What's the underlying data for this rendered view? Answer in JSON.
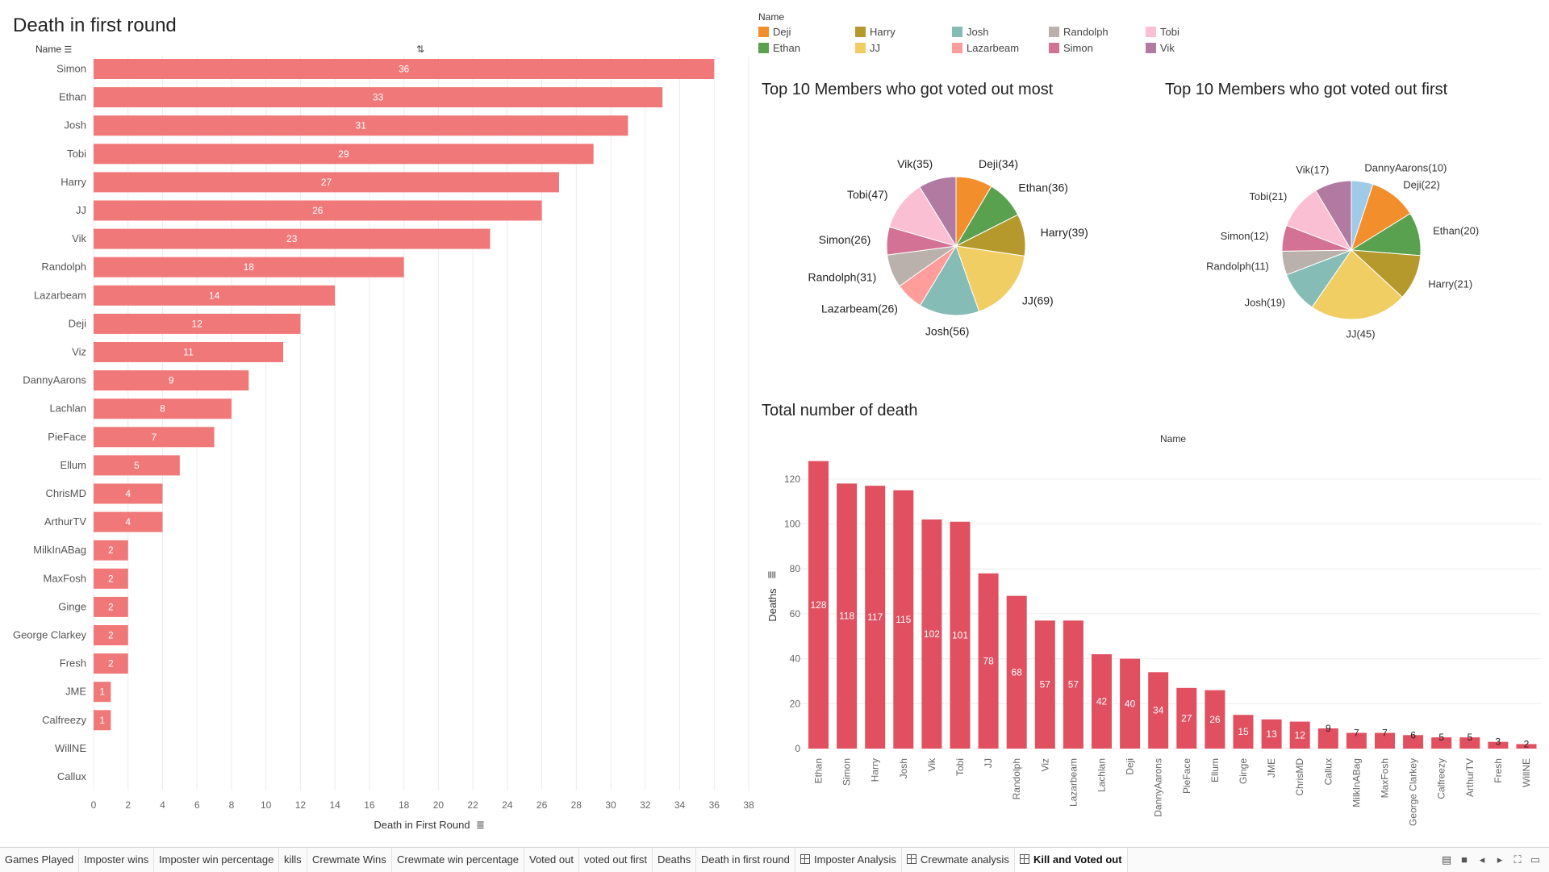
{
  "colors": {
    "bar_left": "#f07878",
    "bar_right": "#e05060",
    "grid": "#ececec"
  },
  "left_chart": {
    "title": "Death in first round",
    "row_header": "Name",
    "x_title": "Death in First Round"
  },
  "legend": {
    "title": "Name",
    "items": [
      {
        "name": "Deji",
        "color": "#f28e2b"
      },
      {
        "name": "Ethan",
        "color": "#59a14f"
      },
      {
        "name": "Harry",
        "color": "#b6992d"
      },
      {
        "name": "JJ",
        "color": "#f1ce63"
      },
      {
        "name": "Josh",
        "color": "#86bcb6"
      },
      {
        "name": "Lazarbeam",
        "color": "#ff9d9a"
      },
      {
        "name": "Randolph",
        "color": "#bab0ac"
      },
      {
        "name": "Simon",
        "color": "#d37295"
      },
      {
        "name": "Tobi",
        "color": "#fabfd2"
      },
      {
        "name": "Vik",
        "color": "#b07aa1"
      }
    ]
  },
  "pie1": {
    "title": "Top 10 Members who got voted out most"
  },
  "pie2": {
    "title": "Top 10 Members who got voted out first"
  },
  "bottom_chart": {
    "title": "Total number of death",
    "col_header": "Name",
    "y_title": "Deaths"
  },
  "tabs": [
    {
      "label": "Games Played",
      "icon": false,
      "active": false
    },
    {
      "label": "Imposter wins",
      "icon": false,
      "active": false
    },
    {
      "label": "Imposter win percentage",
      "icon": false,
      "active": false
    },
    {
      "label": "kills",
      "icon": false,
      "active": false
    },
    {
      "label": "Crewmate Wins",
      "icon": false,
      "active": false
    },
    {
      "label": "Crewmate win percentage",
      "icon": false,
      "active": false
    },
    {
      "label": "Voted out",
      "icon": false,
      "active": false
    },
    {
      "label": "voted out first",
      "icon": false,
      "active": false
    },
    {
      "label": "Deaths",
      "icon": false,
      "active": false
    },
    {
      "label": "Death in first round",
      "icon": false,
      "active": false
    },
    {
      "label": "Imposter Analysis",
      "icon": true,
      "active": false
    },
    {
      "label": "Crewmate analysis",
      "icon": true,
      "active": false
    },
    {
      "label": "Kill and Voted out",
      "icon": true,
      "active": true
    }
  ],
  "chart_data": [
    {
      "type": "bar",
      "orientation": "horizontal",
      "title": "Death in first round",
      "xlabel": "Death in First Round",
      "ylabel": "Name",
      "xlim": [
        0,
        38
      ],
      "xticks": [
        0,
        2,
        4,
        6,
        8,
        10,
        12,
        14,
        16,
        18,
        20,
        22,
        24,
        26,
        28,
        30,
        32,
        34,
        36,
        38
      ],
      "categories": [
        "Simon",
        "Ethan",
        "Josh",
        "Tobi",
        "Harry",
        "JJ",
        "Vik",
        "Randolph",
        "Lazarbeam",
        "Deji",
        "Viz",
        "DannyAarons",
        "Lachlan",
        "PieFace",
        "Ellum",
        "ChrisMD",
        "ArthurTV",
        "MilkInABag",
        "MaxFosh",
        "Ginge",
        "George Clarkey",
        "Fresh",
        "JME",
        "Calfreezy",
        "WillNE",
        "Callux"
      ],
      "values": [
        36,
        33,
        31,
        29,
        27,
        26,
        23,
        18,
        14,
        12,
        11,
        9,
        8,
        7,
        5,
        4,
        4,
        2,
        2,
        2,
        2,
        2,
        1,
        1,
        null,
        null
      ]
    },
    {
      "type": "pie",
      "title": "Top 10 Members who got voted out most",
      "slices": [
        {
          "name": "Deji",
          "value": 34,
          "label": "Deji(34)"
        },
        {
          "name": "Ethan",
          "value": 36,
          "label": "Ethan(36)"
        },
        {
          "name": "Harry",
          "value": 39,
          "label": "Harry(39)"
        },
        {
          "name": "JJ",
          "value": 69,
          "label": "JJ(69)"
        },
        {
          "name": "Josh",
          "value": 56,
          "label": "Josh(56)"
        },
        {
          "name": "Lazarbeam",
          "value": 26,
          "label": "Lazarbeam(26)"
        },
        {
          "name": "Randolph",
          "value": 31,
          "label": "Randolph(31)"
        },
        {
          "name": "Simon",
          "value": 26,
          "label": "Simon(26)"
        },
        {
          "name": "Tobi",
          "value": 47,
          "label": "Tobi(47)"
        },
        {
          "name": "Vik",
          "value": 35,
          "label": "Vik(35)"
        }
      ]
    },
    {
      "type": "pie",
      "title": "Top 10 Members who got voted out first",
      "slices": [
        {
          "name": "DannyAarons",
          "value": 10,
          "label": "DannyAarons(10)",
          "color": "#a0cbe8"
        },
        {
          "name": "Deji",
          "value": 22,
          "label": "Deji(22)"
        },
        {
          "name": "Ethan",
          "value": 20,
          "label": "Ethan(20)"
        },
        {
          "name": "Harry",
          "value": 21,
          "label": "Harry(21)"
        },
        {
          "name": "JJ",
          "value": 45,
          "label": "JJ(45)"
        },
        {
          "name": "Josh",
          "value": 19,
          "label": "Josh(19)"
        },
        {
          "name": "Randolph",
          "value": 11,
          "label": "Randolph(11)"
        },
        {
          "name": "Simon",
          "value": 12,
          "label": "Simon(12)"
        },
        {
          "name": "Tobi",
          "value": 21,
          "label": "Tobi(21)"
        },
        {
          "name": "Vik",
          "value": 17,
          "label": "Vik(17)"
        }
      ]
    },
    {
      "type": "bar",
      "orientation": "vertical",
      "title": "Total number of death",
      "xlabel": "Name",
      "ylabel": "Deaths",
      "ylim": [
        0,
        130
      ],
      "yticks": [
        0,
        20,
        40,
        60,
        80,
        100,
        120
      ],
      "categories": [
        "Ethan",
        "Simon",
        "Harry",
        "Josh",
        "Vik",
        "Tobi",
        "JJ",
        "Randolph",
        "Viz",
        "Lazarbeam",
        "Lachlan",
        "Deji",
        "DannyAarons",
        "PieFace",
        "Ellum",
        "Ginge",
        "JME",
        "ChrisMD",
        "Callux",
        "MilkInABag",
        "MaxFosh",
        "George Clarkey",
        "Calfreezy",
        "ArthurTV",
        "Fresh",
        "WillNE"
      ],
      "values": [
        128,
        118,
        117,
        115,
        102,
        101,
        78,
        68,
        57,
        57,
        42,
        40,
        34,
        27,
        26,
        15,
        13,
        12,
        9,
        7,
        7,
        6,
        5,
        5,
        3,
        2
      ]
    }
  ]
}
